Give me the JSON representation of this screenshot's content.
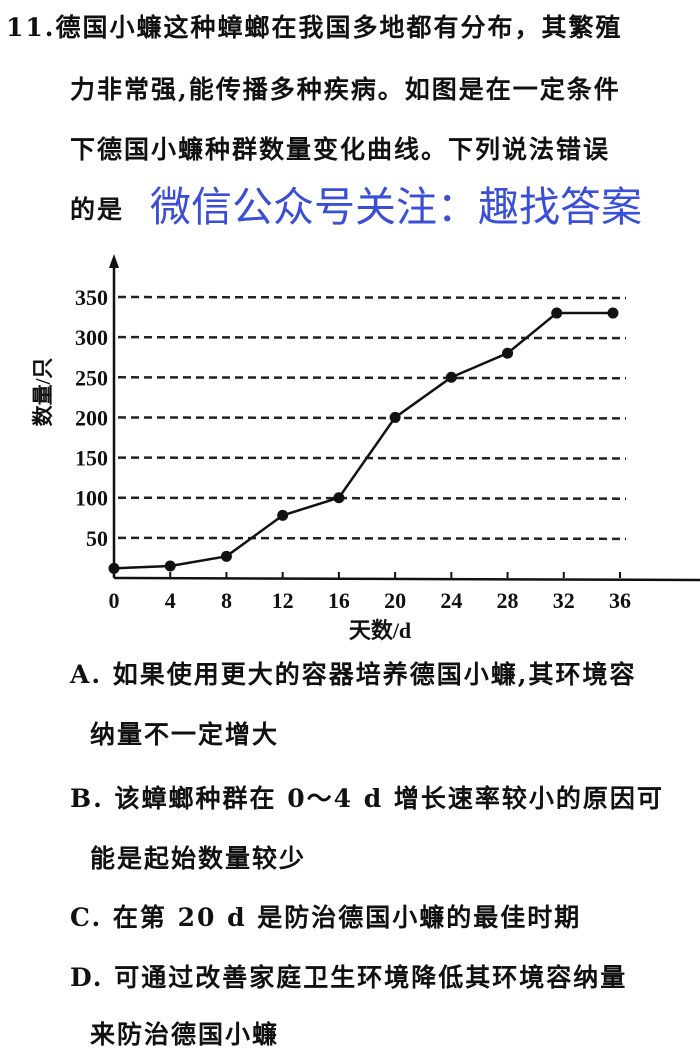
{
  "question": {
    "number": "11.",
    "lines": [
      "德国小蠊这种蟑螂在我国多地都有分布，其繁殖",
      "力非常强,能传播多种疾病。如图是在一定条件",
      "下德国小蠊种群数量变化曲线。下列说法错误",
      "的是"
    ]
  },
  "watermark": "微信公众号关注：趣找答案",
  "watermark_color": "#2a3fd4",
  "chart_data": {
    "type": "line",
    "title": "",
    "xlabel": "天数/d",
    "ylabel": "数量/只",
    "x_ticks": [
      "0",
      "4",
      "8",
      "12",
      "16",
      "20",
      "24",
      "28",
      "32",
      "36"
    ],
    "y_ticks": [
      "50",
      "100",
      "150",
      "200",
      "250",
      "300",
      "350"
    ],
    "xlim": [
      0,
      36
    ],
    "ylim": [
      0,
      350
    ],
    "grid": "horizontal dashed",
    "x": [
      0,
      4,
      8,
      12,
      16,
      20,
      24,
      28,
      31.5,
      35.5
    ],
    "y": [
      12,
      15,
      27,
      78,
      100,
      200,
      250,
      280,
      330,
      330
    ]
  },
  "options": [
    {
      "lines": [
        "A. 如果使用更大的容器培养德国小蠊,其环境容",
        "纳量不一定增大"
      ]
    },
    {
      "lines": [
        "B. 该蟑螂种群在 0～4 d 增长速率较小的原因可",
        "能是起始数量较少"
      ]
    },
    {
      "lines": [
        "C. 在第 20 d 是防治德国小蠊的最佳时期"
      ]
    },
    {
      "lines": [
        "D. 可通过改善家庭卫生环境降低其环境容纳量",
        "来防治德国小蠊"
      ]
    }
  ]
}
